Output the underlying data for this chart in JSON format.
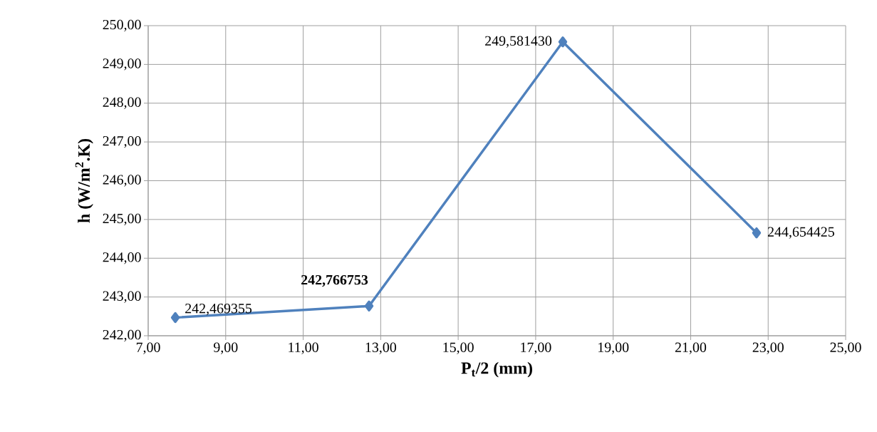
{
  "chart_data": {
    "type": "line",
    "xlabel": "P$_{t}$/2 (mm)",
    "ylabel": "h  (W/m$^{2}$.K)",
    "x": [
      7.7,
      12.7,
      17.7,
      22.7
    ],
    "values": [
      242.469355,
      242.766753,
      249.58143,
      244.654425
    ],
    "value_labels": [
      "242,469355",
      "**242,766753**",
      "249,581430",
      "244,654425"
    ],
    "color": "#4f81bd",
    "marker": "diamond",
    "line_style": "solid",
    "grid": true,
    "xlim": [
      7,
      25
    ],
    "xticks": [
      {
        "value": 7,
        "label": "7,00"
      },
      {
        "value": 9,
        "label": "9,00"
      },
      {
        "value": 11,
        "label": "11,00"
      },
      {
        "value": 13,
        "label": "13,00"
      },
      {
        "value": 15,
        "label": "15,00"
      },
      {
        "value": 17,
        "label": "17,00"
      },
      {
        "value": 19,
        "label": "19,00"
      },
      {
        "value": 21,
        "label": "21,00"
      },
      {
        "value": 23,
        "label": "23,00"
      },
      {
        "value": 25,
        "label": "25,00"
      }
    ],
    "ylim": [
      242,
      250
    ],
    "yticks": [
      {
        "value": 242,
        "label": "242,00"
      },
      {
        "value": 243,
        "label": "243,00"
      },
      {
        "value": 244,
        "label": "244,00"
      },
      {
        "value": 245,
        "label": "245,00"
      },
      {
        "value": 246,
        "label": "246,00"
      },
      {
        "value": 247,
        "label": "247,00"
      },
      {
        "value": 248,
        "label": "248,00"
      },
      {
        "value": 249,
        "label": "249,00"
      },
      {
        "value": 250,
        "label": "250,00"
      }
    ]
  }
}
